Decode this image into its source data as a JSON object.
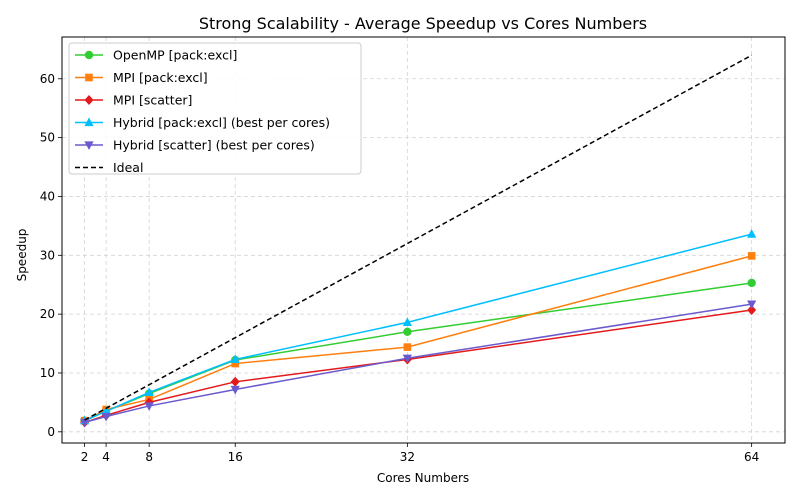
{
  "chart_data": {
    "type": "line",
    "title": "Strong Scalability - Average Speedup vs Cores Numbers",
    "xlabel": "Cores Numbers",
    "ylabel": "Speedup",
    "x": [
      2,
      4,
      8,
      16,
      32,
      64
    ],
    "xticks": [
      2,
      4,
      8,
      16,
      32,
      64
    ],
    "yticks": [
      0,
      10,
      20,
      30,
      40,
      50,
      60
    ],
    "xlim": [
      -0.1,
      67.1
    ],
    "ylim": [
      -1.9,
      67.1
    ],
    "grid": true,
    "legend_position": "top-left",
    "series": [
      {
        "name": "OpenMP [pack:excl]",
        "color": "#32cd32",
        "marker": "circle",
        "dashed": false,
        "values": [
          1.9,
          3.5,
          6.5,
          12.2,
          17.0,
          25.3
        ]
      },
      {
        "name": "MPI [pack:excl]",
        "color": "#ff7f0e",
        "marker": "square",
        "dashed": false,
        "values": [
          1.9,
          3.8,
          5.5,
          11.6,
          14.4,
          29.9
        ]
      },
      {
        "name": "MPI [scatter]",
        "color": "#e31a1c",
        "marker": "diamond",
        "dashed": false,
        "values": [
          1.6,
          2.8,
          5.0,
          8.5,
          12.3,
          20.7
        ]
      },
      {
        "name": "Hybrid [pack:excl] (best per cores)",
        "color": "#00bfff",
        "marker": "triangle-up",
        "dashed": false,
        "values": [
          1.9,
          3.5,
          6.7,
          12.3,
          18.6,
          33.6
        ]
      },
      {
        "name": "Hybrid [scatter] (best per cores)",
        "color": "#6a5acd",
        "marker": "triangle-down",
        "dashed": false,
        "values": [
          1.6,
          2.6,
          4.4,
          7.2,
          12.5,
          21.7
        ]
      },
      {
        "name": "Ideal",
        "color": "#000000",
        "marker": "none",
        "dashed": true,
        "values": [
          2,
          4,
          8,
          16,
          32,
          64
        ]
      }
    ]
  }
}
